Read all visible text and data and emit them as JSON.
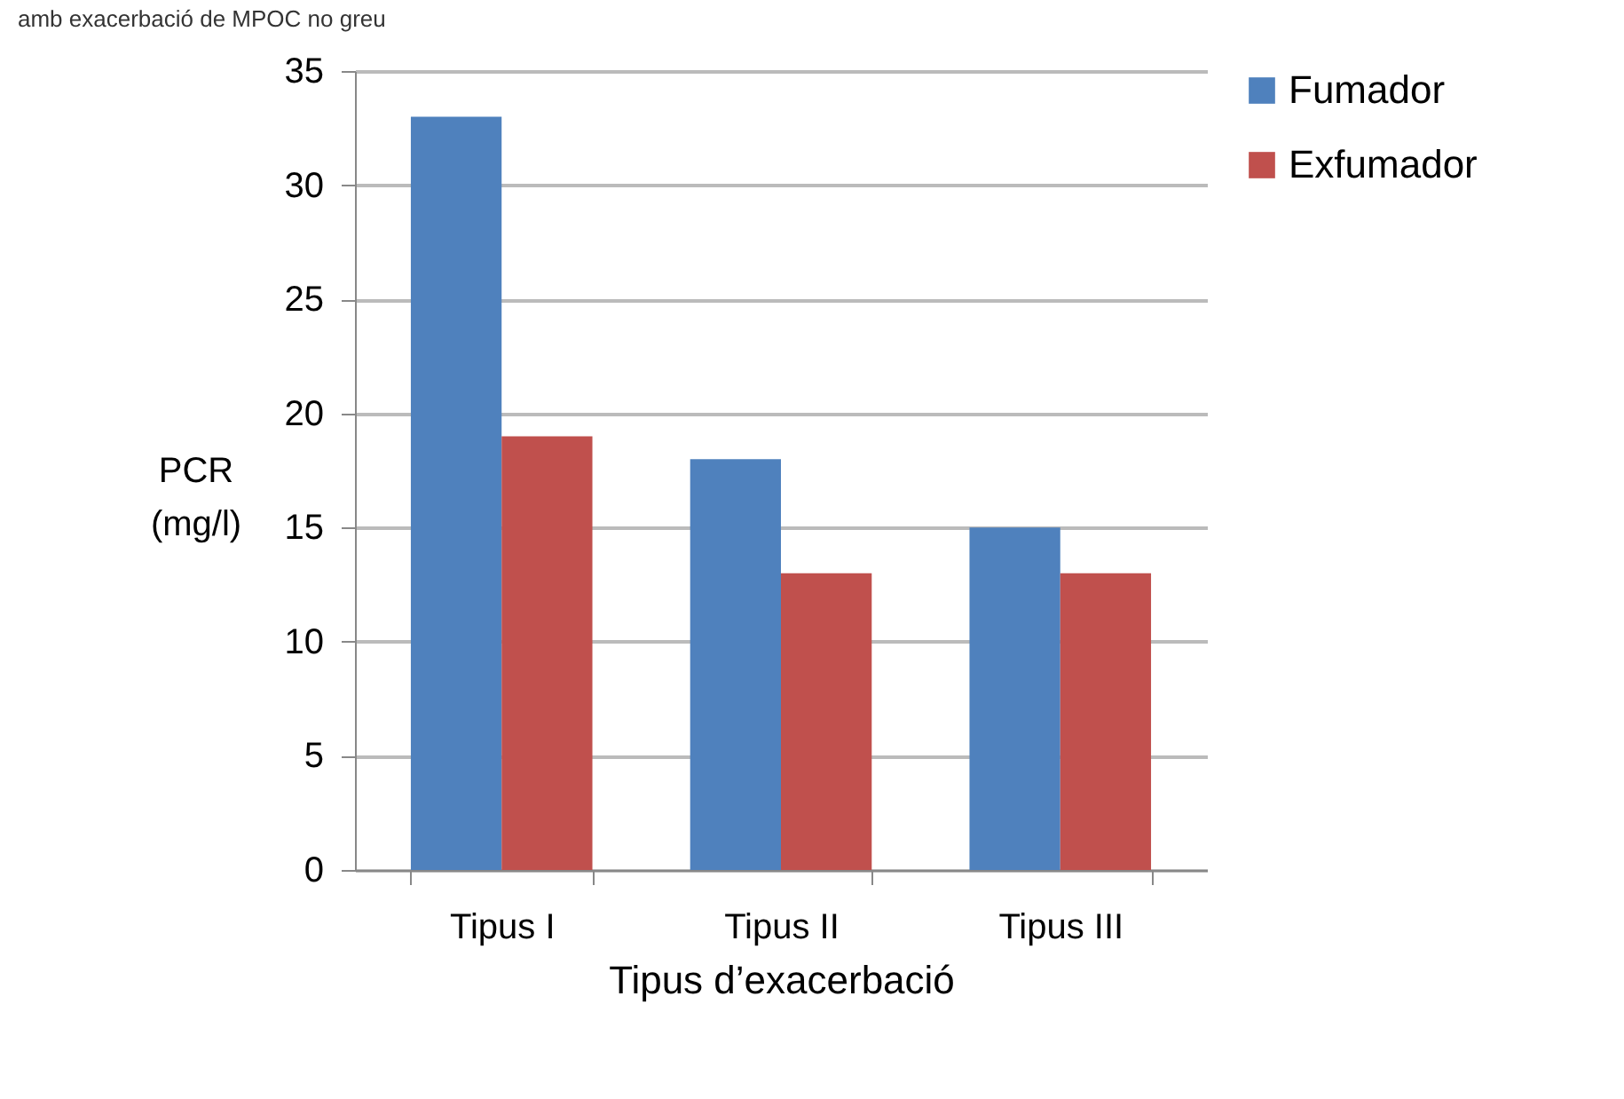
{
  "chart_data": {
    "type": "bar",
    "title": "amb exacerbació de MPOC no greu",
    "xlabel": "Tipus d’exacerbació",
    "ylabel": "PCR (mg/l)",
    "categories": [
      "Tipus I",
      "Tipus II",
      "Tipus III"
    ],
    "series": [
      {
        "name": "Fumador",
        "color": "#4f81bd",
        "values": [
          33,
          18,
          15
        ]
      },
      {
        "name": "Exfumador",
        "color": "#c0504d",
        "values": [
          19,
          13,
          13
        ]
      }
    ],
    "ylim": [
      0,
      35
    ],
    "yticks": [
      0,
      5,
      10,
      15,
      20,
      25,
      30,
      35
    ],
    "grid": "y",
    "legend": "right"
  }
}
